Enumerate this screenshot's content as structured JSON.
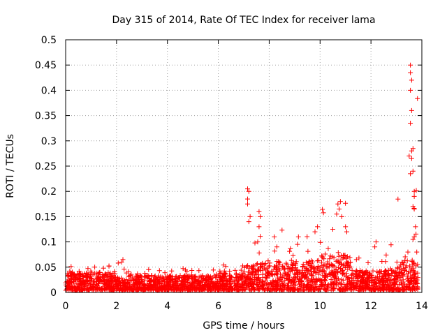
{
  "chart_data": {
    "type": "scatter",
    "title": "Day 315 of 2014, Rate Of TEC Index for receiver lama",
    "xlabel": "GPS time / hours",
    "ylabel": "ROTI / TECUs",
    "xlim": [
      0,
      14
    ],
    "ylim": [
      0,
      0.5
    ],
    "x_ticks": [
      0,
      2,
      4,
      6,
      8,
      10,
      12,
      14
    ],
    "y_ticks": [
      0,
      0.05,
      0.1,
      0.15,
      0.2,
      0.25,
      0.3,
      0.35,
      0.4,
      0.45,
      0.5
    ],
    "x_tick_labels": [
      "0",
      "2",
      "4",
      "6",
      "8",
      "10",
      "12",
      "14"
    ],
    "y_tick_labels": [
      "0",
      "0.05",
      "0.1",
      "0.15",
      "0.2",
      "0.25",
      "0.3",
      "0.35",
      "0.4",
      "0.45",
      "0.5"
    ],
    "grid": true,
    "marker": "+",
    "series_color": "#ff0000",
    "data_extent": {
      "x_min": 0,
      "x_max": 13.85
    },
    "activity_profile": [
      {
        "x_start": 0.0,
        "x_end": 2.0,
        "typical_max": 0.035,
        "peak": 0.055
      },
      {
        "x_start": 2.0,
        "x_end": 2.4,
        "typical_max": 0.03,
        "peak": 0.065
      },
      {
        "x_start": 2.4,
        "x_end": 6.0,
        "typical_max": 0.03,
        "peak": 0.05
      },
      {
        "x_start": 6.0,
        "x_end": 7.0,
        "typical_max": 0.035,
        "peak": 0.06
      },
      {
        "x_start": 7.0,
        "x_end": 7.5,
        "typical_max": 0.05,
        "peak": 0.205
      },
      {
        "x_start": 7.5,
        "x_end": 10.0,
        "typical_max": 0.06,
        "peak": 0.13
      },
      {
        "x_start": 10.0,
        "x_end": 11.2,
        "typical_max": 0.07,
        "peak": 0.18
      },
      {
        "x_start": 11.2,
        "x_end": 13.0,
        "typical_max": 0.04,
        "peak": 0.1
      },
      {
        "x_start": 13.0,
        "x_end": 13.85,
        "typical_max": 0.06,
        "peak": 0.45
      }
    ],
    "notable_points": [
      {
        "x": 2.25,
        "y": 0.065
      },
      {
        "x": 2.2,
        "y": 0.06
      },
      {
        "x": 7.15,
        "y": 0.205
      },
      {
        "x": 7.2,
        "y": 0.2
      },
      {
        "x": 7.15,
        "y": 0.185
      },
      {
        "x": 7.15,
        "y": 0.175
      },
      {
        "x": 7.25,
        "y": 0.15
      },
      {
        "x": 7.2,
        "y": 0.14
      },
      {
        "x": 7.6,
        "y": 0.16
      },
      {
        "x": 7.65,
        "y": 0.15
      },
      {
        "x": 7.6,
        "y": 0.13
      },
      {
        "x": 7.55,
        "y": 0.1
      },
      {
        "x": 8.2,
        "y": 0.11
      },
      {
        "x": 8.3,
        "y": 0.09
      },
      {
        "x": 9.15,
        "y": 0.11
      },
      {
        "x": 9.9,
        "y": 0.13
      },
      {
        "x": 9.8,
        "y": 0.12
      },
      {
        "x": 10.5,
        "y": 0.125
      },
      {
        "x": 10.7,
        "y": 0.175
      },
      {
        "x": 10.75,
        "y": 0.165
      },
      {
        "x": 10.8,
        "y": 0.18
      },
      {
        "x": 10.65,
        "y": 0.155
      },
      {
        "x": 10.85,
        "y": 0.15
      },
      {
        "x": 11.0,
        "y": 0.13
      },
      {
        "x": 11.05,
        "y": 0.12
      },
      {
        "x": 12.2,
        "y": 0.1
      },
      {
        "x": 12.15,
        "y": 0.09
      },
      {
        "x": 13.55,
        "y": 0.45
      },
      {
        "x": 13.55,
        "y": 0.435
      },
      {
        "x": 13.6,
        "y": 0.42
      },
      {
        "x": 13.55,
        "y": 0.4
      },
      {
        "x": 13.6,
        "y": 0.36
      },
      {
        "x": 13.55,
        "y": 0.335
      },
      {
        "x": 13.65,
        "y": 0.285
      },
      {
        "x": 13.6,
        "y": 0.28
      },
      {
        "x": 13.5,
        "y": 0.27
      },
      {
        "x": 13.6,
        "y": 0.265
      },
      {
        "x": 13.65,
        "y": 0.24
      },
      {
        "x": 13.55,
        "y": 0.235
      },
      {
        "x": 13.7,
        "y": 0.2
      },
      {
        "x": 13.7,
        "y": 0.19
      },
      {
        "x": 13.65,
        "y": 0.17
      },
      {
        "x": 13.7,
        "y": 0.165
      },
      {
        "x": 13.75,
        "y": 0.13
      },
      {
        "x": 13.7,
        "y": 0.11
      },
      {
        "x": 13.65,
        "y": 0.105
      },
      {
        "x": 13.8,
        "y": 0.08
      },
      {
        "x": 13.45,
        "y": 0.08
      }
    ]
  }
}
